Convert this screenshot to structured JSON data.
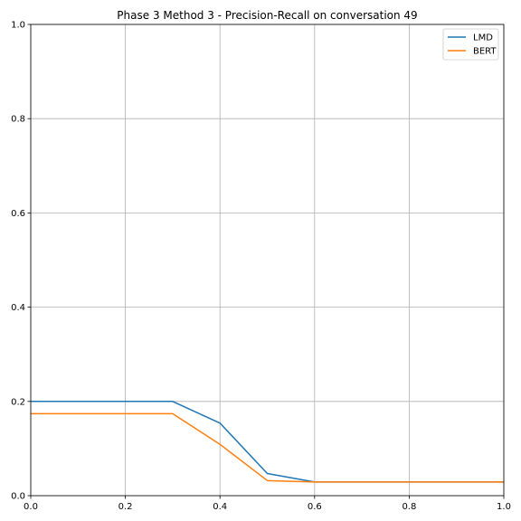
{
  "chart_data": {
    "type": "line",
    "title": "Phase 3 Method 3 - Precision-Recall on conversation 49",
    "xlabel": "",
    "ylabel": "",
    "xlim": [
      0,
      1
    ],
    "ylim": [
      0,
      1
    ],
    "grid": true,
    "legend_position": "top-right",
    "x_ticks": [
      "0.0",
      "0.2",
      "0.4",
      "0.6",
      "0.8",
      "1.0"
    ],
    "y_ticks": [
      "0.0",
      "0.2",
      "0.4",
      "0.6",
      "0.8",
      "1.0"
    ],
    "series": [
      {
        "name": "LMD",
        "color": "#1f77b4",
        "x": [
          0.0,
          0.1,
          0.2,
          0.3,
          0.4,
          0.5,
          0.6,
          0.7,
          0.8,
          0.9,
          1.0
        ],
        "y": [
          0.2,
          0.2,
          0.2,
          0.2,
          0.154,
          0.047,
          0.029,
          0.029,
          0.029,
          0.029,
          0.029
        ]
      },
      {
        "name": "BERT",
        "color": "#ff7f0e",
        "x": [
          0.0,
          0.1,
          0.2,
          0.3,
          0.4,
          0.5,
          0.6,
          0.7,
          0.8,
          0.9,
          1.0
        ],
        "y": [
          0.174,
          0.174,
          0.174,
          0.174,
          0.109,
          0.032,
          0.029,
          0.029,
          0.029,
          0.029,
          0.029
        ]
      }
    ]
  }
}
